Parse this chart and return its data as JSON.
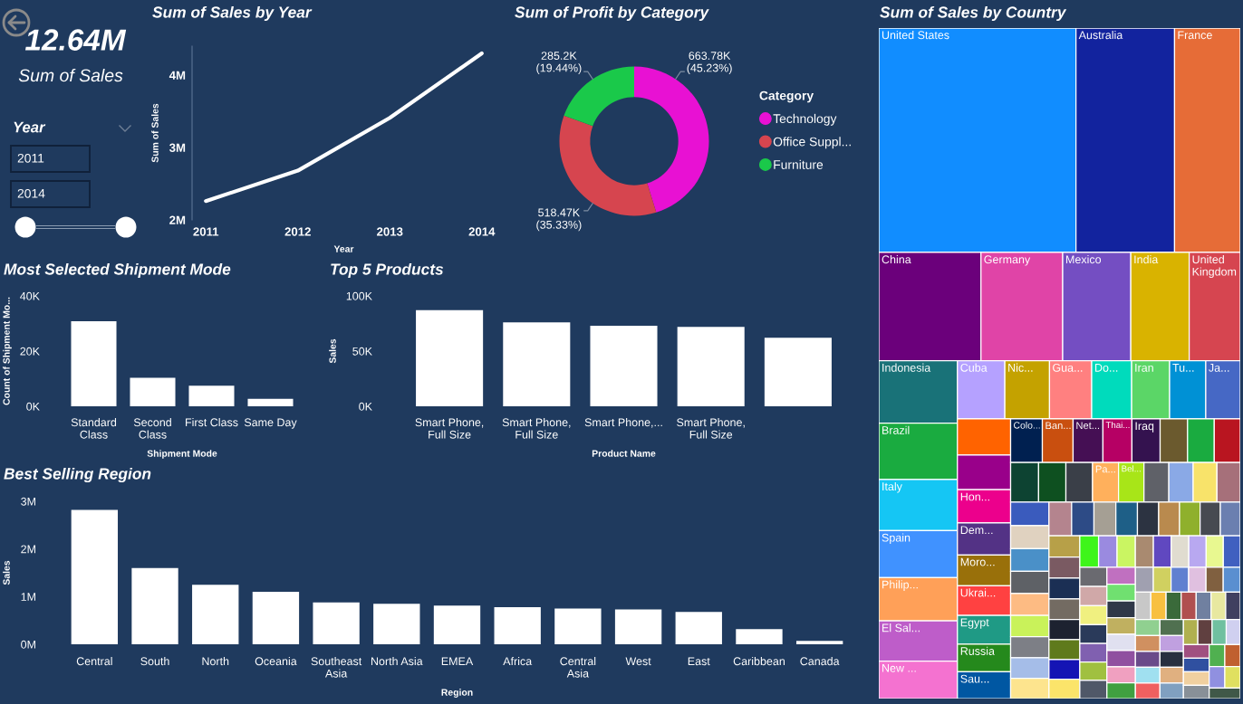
{
  "chart_data": [
    {
      "type": "other",
      "annotations": [
        "12.64M",
        "Sum of Sales"
      ]
    },
    {
      "type": "other",
      "title": "Year",
      "annotations": [
        "2011",
        "2014"
      ]
    },
    {
      "type": "line",
      "title": "Sum of Sales by Year",
      "xlabel": "Year",
      "ylabel": "Sum of Sales",
      "categories": [
        "2011",
        "2012",
        "2013",
        "2014"
      ],
      "values": [
        2260000,
        2680000,
        3410000,
        4300000
      ],
      "color": "#ffffff",
      "ylim": [
        2000000,
        4400000
      ],
      "yticks": [
        {
          "value": 2000000,
          "label": "2M"
        },
        {
          "value": 3000000,
          "label": "3M"
        },
        {
          "value": 4000000,
          "label": "4M"
        }
      ]
    },
    {
      "type": "donut",
      "title": "Sum of Profit by Category",
      "legend_title": "Category",
      "legend": "right",
      "categories": [
        "Technology",
        "Office Suppl...",
        "Furniture"
      ],
      "values": [
        663780,
        518470,
        285200
      ],
      "colors": [
        "#e811d3",
        "#d6454f",
        "#1ac94a"
      ],
      "value_labels": [
        "663.78K\n(45.23%)",
        "518.47K\n(35.33%)",
        "285.2K\n(19.44%)"
      ]
    },
    {
      "type": "other",
      "title": "Sum of Sales by Country",
      "categories": [
        "United States",
        "Australia",
        "France",
        "China",
        "Germany",
        "Mexico",
        "India",
        "United Kingdom",
        "Indonesia",
        "Brazil",
        "Italy",
        "Spain",
        "Philip...",
        "El Sal...",
        "New ...",
        "Cuba",
        "Nic...",
        "Gua...",
        "Do...",
        "Iran",
        "Tu...",
        "Ja...",
        null,
        null,
        "Hon...",
        "Dem...",
        "Moro...",
        "Ukrai...",
        "Egypt",
        "Russia",
        "Sau...",
        "Colo...",
        "Ban...",
        "Net...",
        "Thai...",
        "Iraq",
        null,
        null,
        null,
        null,
        null,
        null,
        "Pa...",
        "Bel...",
        null,
        null,
        null,
        null,
        null,
        null,
        null,
        null,
        null,
        null,
        null,
        null,
        null,
        null,
        null,
        null,
        null,
        null,
        null,
        null,
        null,
        null,
        null,
        null,
        null,
        null,
        null,
        null,
        null,
        null,
        null,
        null,
        null,
        null,
        null,
        null,
        null,
        null,
        null,
        null,
        null,
        null,
        null,
        null,
        null,
        null,
        null,
        null,
        null,
        null,
        null,
        null,
        null,
        null,
        null,
        null,
        null,
        null,
        null,
        null,
        null,
        null,
        null,
        null,
        null,
        null,
        null,
        null,
        null,
        null,
        null,
        null,
        null,
        null,
        null,
        null,
        null,
        null,
        null,
        null,
        null,
        null,
        null,
        null,
        null,
        null,
        null,
        null,
        null,
        null
      ],
      "colors": [
        "#118dff",
        "#12239e",
        "#e66c37",
        "#6b007b",
        "#e044a7",
        "#744ec2",
        "#d9b300",
        "#d64550",
        "#197278",
        "#1aab40",
        "#15c6f4",
        "#4092ff",
        "#ffa058",
        "#be5dc9",
        "#f472d0",
        "#b5a1ff",
        "#c4a200",
        "#ff8080",
        "#00dbbc",
        "#5bd667",
        "#0091d5",
        "#4668c5",
        "#ff6300",
        "#99008a",
        "#ec008c",
        "#533285",
        "#99700a",
        "#ff4141",
        "#1f9a85",
        "#25891c",
        "#0057a2",
        "#002050",
        "#c94f0f",
        "#450f54",
        "#b60064",
        "#34124f",
        "#6b5a2e",
        "#1aab40",
        "#b91520",
        "#0d4332",
        "#0e5020",
        "#3a3f48",
        "#ffb05c",
        "#a8e518",
        "#5f6168",
        "#8aa9e6",
        "#f8e36a",
        "#a6707a",
        "#3a5bbd",
        "#e0d2c0",
        "#4a90c8",
        "#5e6166",
        "#fdbb83",
        "#c9f25a",
        "#7d7f86",
        "#a5bde8",
        "#fde48e",
        "#b4848e",
        "#2d4b86",
        "#a59f94",
        "#1e5f87",
        "#2c3341",
        "#b98a4e",
        "#8fb02c",
        "#474a51",
        "#6b7fb0",
        "#b7a048",
        "#7a5a62",
        "#1b2f54",
        "#736b62",
        "#1d2230",
        "#5f7a1c",
        "#1414b4",
        "#fbe46a",
        "#3ef51a",
        "#9a8ae0",
        "#caf562",
        "#a98a70",
        "#6048c0",
        "#e0dcd0",
        "#b8a8f0",
        "#e8f890",
        "#4060c0",
        "#6a6a70",
        "#d0a8a8",
        "#f0f080",
        "#2a3a5a",
        "#8060b0",
        "#a0c040",
        "#505868",
        "#c070c0",
        "#70e070",
        "#303848",
        "#c0b060",
        "#e0e0f0",
        "#9050a0",
        "#f0a0c0",
        "#40a040",
        "#a0a0b0",
        "#d0d060",
        "#6080d0",
        "#e0c0e0",
        "#806040",
        "#5a8fd0",
        "#c8c8c8",
        "#f8c040",
        "#3a6a3a",
        "#b05050",
        "#7080a0",
        "#e8e8a0",
        "#404060",
        "#90d090",
        "#d09060",
        "#6a4a8a",
        "#a0e0f0",
        "#f06060",
        "#507050",
        "#c0a0e0",
        "#283040",
        "#e0b080",
        "#80a0c0",
        "#b0b050",
        "#604040",
        "#70c0a0",
        "#d0d0f0",
        "#a05080",
        "#3050a0",
        "#f0d0a0",
        "#889098",
        "#50b050",
        "#c06030",
        "#9090e0",
        "#e0e060",
        "#405848"
      ]
    },
    {
      "type": "bar",
      "title": "Most Selected Shipment Mode",
      "xlabel": "Shipment Mode",
      "ylabel": "Count of Shipment Mo...",
      "categories": [
        "Standard Class",
        "Second Class",
        "First Class",
        "Same Day"
      ],
      "values": [
        30800,
        10300,
        7500,
        2700
      ],
      "color": "#ffffff",
      "ylim": [
        0,
        40000
      ],
      "yticks": [
        {
          "value": 0,
          "label": "0K"
        },
        {
          "value": 20000,
          "label": "20K"
        },
        {
          "value": 40000,
          "label": "40K"
        }
      ]
    },
    {
      "type": "bar",
      "title": "Top 5 Products",
      "xlabel": "Product Name",
      "ylabel": "Sales",
      "categories": [
        "Smart Phone, Full Size",
        "Smart Phone, Full Size",
        "Smart Phone,...",
        "Smart Phone, Full Size",
        null
      ],
      "values": [
        87000,
        76000,
        73000,
        72000,
        62000
      ],
      "color": "#ffffff",
      "ylim": [
        0,
        100000
      ],
      "yticks": [
        {
          "value": 0,
          "label": "0K"
        },
        {
          "value": 50000,
          "label": "50K"
        },
        {
          "value": 100000,
          "label": "100K"
        }
      ]
    },
    {
      "type": "bar",
      "title": "Best Selling Region",
      "xlabel": "Region",
      "ylabel": "Sales",
      "categories": [
        "Central",
        "South",
        "North",
        "Oceania",
        "Southeast Asia",
        "North Asia",
        "EMEA",
        "Africa",
        "Central Asia",
        "West",
        "East",
        "Caribbean",
        "Canada"
      ],
      "values": [
        2820000,
        1600000,
        1250000,
        1100000,
        880000,
        850000,
        810000,
        780000,
        750000,
        730000,
        680000,
        320000,
        70000
      ],
      "color": "#ffffff",
      "ylim": [
        0,
        3000000
      ],
      "yticks": [
        {
          "value": 0,
          "label": "0M"
        },
        {
          "value": 1000000,
          "label": "1M"
        },
        {
          "value": 2000000,
          "label": "2M"
        },
        {
          "value": 3000000,
          "label": "3M"
        }
      ]
    }
  ]
}
